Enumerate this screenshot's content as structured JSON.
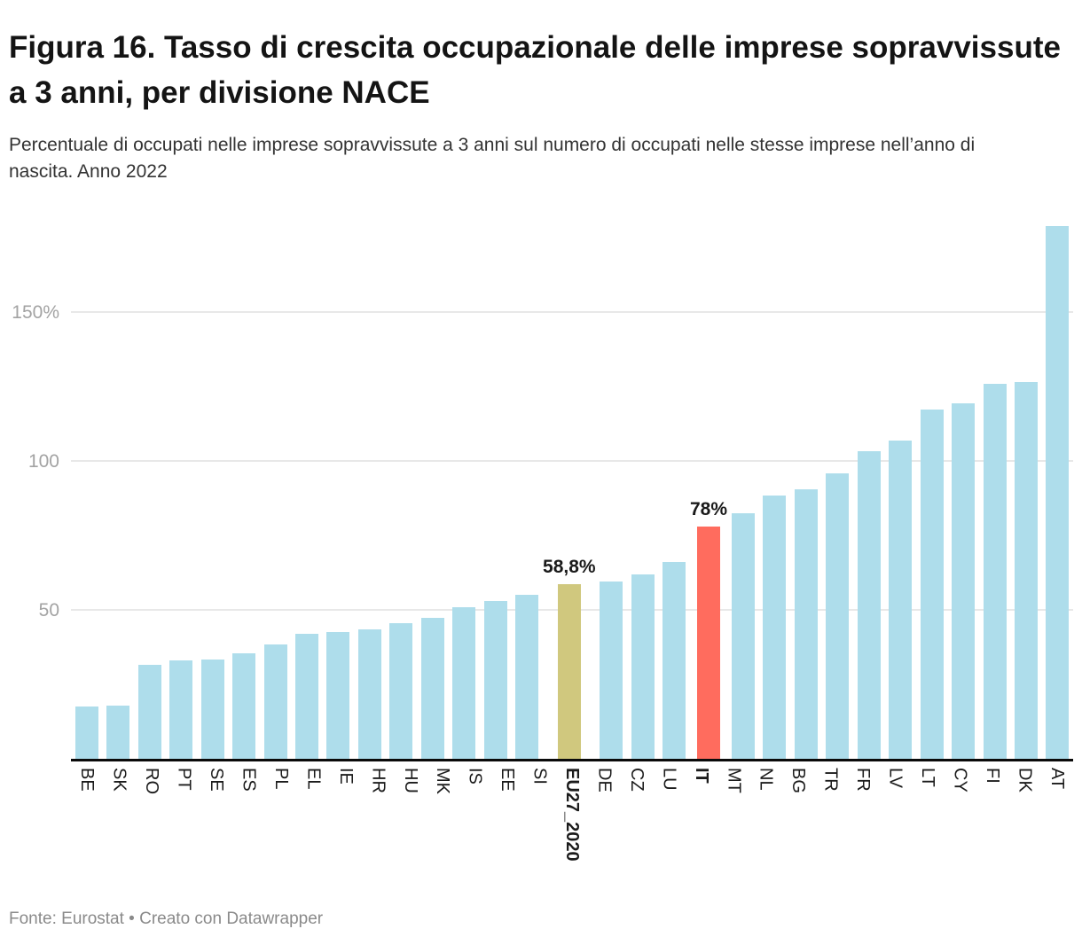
{
  "header": {
    "title": "Figura 16. Tasso di crescita occupazionale delle imprese sopravvissute a 3 anni, per divisione NACE",
    "subtitle": "Percentuale di occupati nelle imprese sopravvissute a 3 anni sul numero di occupati nelle stesse imprese nell’anno di nascita. Anno 2022"
  },
  "footer": {
    "text": "Fonte: Eurostat • Creato con Datawrapper"
  },
  "colors": {
    "bar_default": "#aeddeb",
    "bar_eu_highlight": "#d0c87e",
    "bar_it_highlight": "#ff6c5e",
    "gridline": "#e8e8e8",
    "axis_line": "#0a0a0a",
    "tick_label": "#a3a3a3"
  },
  "chart_data": {
    "type": "bar",
    "title": "Figura 16. Tasso di crescita occupazionale delle imprese sopravvissute a 3 anni, per divisione NACE",
    "subtitle": "Percentuale di occupati nelle imprese sopravvissute a 3 anni sul numero di occupati nelle stesse imprese nell’anno di nascita. Anno 2022",
    "unit": "%",
    "grid": true,
    "ylim": [
      0,
      183.5
    ],
    "yticks": [
      {
        "value": 50,
        "label": "50"
      },
      {
        "value": 100,
        "label": "100"
      },
      {
        "value": 150,
        "label": "150%"
      }
    ],
    "categories": [
      "BE",
      "SK",
      "RO",
      "PT",
      "SE",
      "ES",
      "PL",
      "EL",
      "IE",
      "HR",
      "HU",
      "MK",
      "IS",
      "EE",
      "SI",
      "EU27_2020",
      "DE",
      "CZ",
      "LU",
      "IT",
      "MT",
      "NL",
      "BG",
      "TR",
      "FR",
      "LV",
      "LT",
      "CY",
      "FI",
      "DK",
      "AT"
    ],
    "values": [
      17.5,
      18,
      31.5,
      33,
      33.5,
      35.5,
      38.5,
      42,
      42.5,
      43.5,
      45.5,
      47.5,
      51,
      53,
      55,
      58.8,
      59.5,
      62,
      66,
      78,
      82.5,
      88.5,
      90.5,
      96,
      103.5,
      107,
      117.5,
      119.5,
      126,
      126.5,
      179
    ],
    "bar_color_default": "#aeddeb",
    "highlighted_bars": [
      {
        "category": "EU27_2020",
        "color": "#d0c87e",
        "annotation": "58,8%"
      },
      {
        "category": "IT",
        "color": "#ff6c5e",
        "annotation": "78%"
      }
    ],
    "bold_category_labels": [
      "EU27_2020",
      "IT"
    ],
    "source_note": "Fonte: Eurostat • Creato con Datawrapper"
  }
}
